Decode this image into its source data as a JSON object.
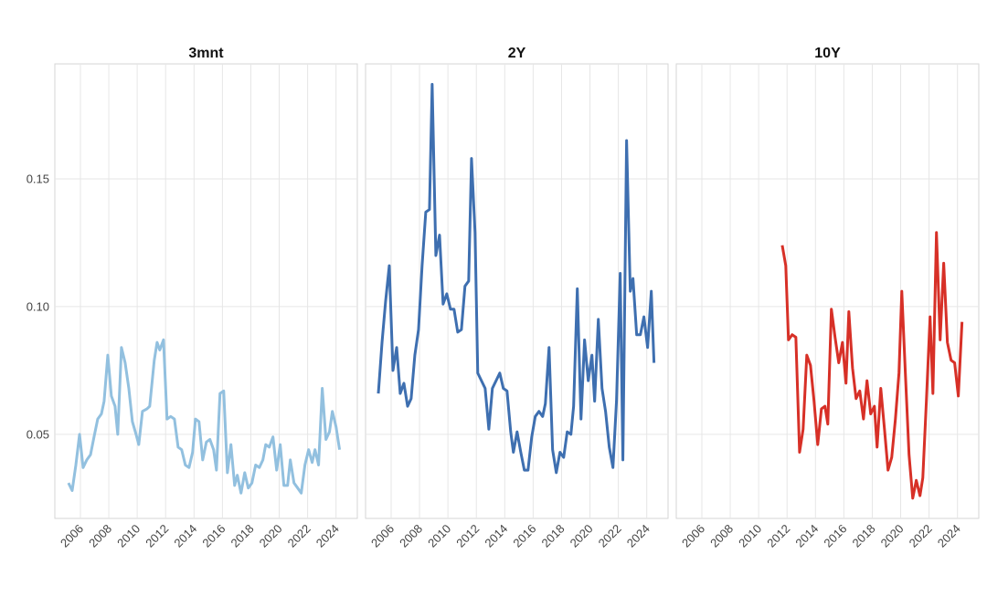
{
  "chart_data": [
    {
      "type": "line",
      "title": "3mnt",
      "color": "#92c0df",
      "grid": true,
      "xlim": [
        2004.2,
        2025.5
      ],
      "ylim": [
        0.0171,
        0.195
      ],
      "xticks": [
        2006,
        2008,
        2010,
        2012,
        2014,
        2016,
        2018,
        2020,
        2022,
        2024
      ],
      "yticks": [
        0.05,
        {
          "value": 0.1,
          "label": "0.10"
        },
        0.15
      ],
      "x": [
        2005.16,
        2005.42,
        2005.68,
        2005.94,
        2006.19,
        2006.45,
        2006.71,
        2006.96,
        2007.22,
        2007.48,
        2007.67,
        2007.93,
        2008.18,
        2008.44,
        2008.63,
        2008.89,
        2009.15,
        2009.41,
        2009.66,
        2009.92,
        2010.11,
        2010.37,
        2010.69,
        2010.88,
        2011.2,
        2011.4,
        2011.59,
        2011.85,
        2012.1,
        2012.36,
        2012.62,
        2012.88,
        2013.13,
        2013.39,
        2013.65,
        2013.9,
        2014.1,
        2014.35,
        2014.61,
        2014.87,
        2015.12,
        2015.38,
        2015.58,
        2015.83,
        2016.09,
        2016.35,
        2016.6,
        2016.86,
        2017.05,
        2017.31,
        2017.57,
        2017.82,
        2018.08,
        2018.34,
        2018.6,
        2018.85,
        2019.05,
        2019.3,
        2019.56,
        2019.82,
        2020.07,
        2020.33,
        2020.59,
        2020.78,
        2021.04,
        2021.3,
        2021.55,
        2021.81,
        2022.07,
        2022.32,
        2022.52,
        2022.77,
        2023.03,
        2023.29,
        2023.54,
        2023.74,
        2024.0,
        2024.25
      ],
      "values": [
        0.031,
        0.028,
        0.038,
        0.05,
        0.037,
        0.04,
        0.042,
        0.049,
        0.056,
        0.058,
        0.063,
        0.081,
        0.065,
        0.061,
        0.05,
        0.084,
        0.078,
        0.068,
        0.055,
        0.05,
        0.046,
        0.059,
        0.06,
        0.061,
        0.079,
        0.086,
        0.083,
        0.087,
        0.056,
        0.057,
        0.056,
        0.045,
        0.044,
        0.038,
        0.037,
        0.043,
        0.056,
        0.055,
        0.04,
        0.047,
        0.048,
        0.044,
        0.036,
        0.066,
        0.067,
        0.035,
        0.046,
        0.03,
        0.034,
        0.027,
        0.035,
        0.029,
        0.031,
        0.038,
        0.037,
        0.04,
        0.046,
        0.045,
        0.049,
        0.036,
        0.046,
        0.03,
        0.03,
        0.04,
        0.031,
        0.029,
        0.027,
        0.038,
        0.044,
        0.039,
        0.044,
        0.038,
        0.068,
        0.048,
        0.051,
        0.059,
        0.053,
        0.044
      ]
    },
    {
      "type": "line",
      "title": "2Y",
      "color": "#3e6fb0",
      "grid": true,
      "xlim": [
        2004.2,
        2025.5
      ],
      "ylim": [
        0.0171,
        0.195
      ],
      "xticks": [
        2006,
        2008,
        2010,
        2012,
        2014,
        2016,
        2018,
        2020,
        2022,
        2024
      ],
      "yticks": [
        0.05,
        {
          "value": 0.1,
          "label": "0.10"
        },
        0.15
      ],
      "x": [
        2005.1,
        2005.36,
        2005.61,
        2005.87,
        2006.13,
        2006.39,
        2006.64,
        2006.9,
        2007.16,
        2007.41,
        2007.67,
        2007.93,
        2008.18,
        2008.44,
        2008.7,
        2008.89,
        2009.15,
        2009.41,
        2009.66,
        2009.92,
        2010.18,
        2010.43,
        2010.69,
        2010.95,
        2011.2,
        2011.46,
        2011.66,
        2011.91,
        2012.1,
        2012.36,
        2012.62,
        2012.88,
        2013.13,
        2013.39,
        2013.65,
        2013.9,
        2014.16,
        2014.42,
        2014.61,
        2014.87,
        2015.13,
        2015.38,
        2015.64,
        2015.9,
        2016.15,
        2016.41,
        2016.67,
        2016.86,
        2017.12,
        2017.37,
        2017.63,
        2017.89,
        2018.15,
        2018.4,
        2018.66,
        2018.85,
        2019.11,
        2019.37,
        2019.62,
        2019.88,
        2020.14,
        2020.33,
        2020.59,
        2020.85,
        2021.1,
        2021.36,
        2021.62,
        2021.87,
        2022.13,
        2022.32,
        2022.58,
        2022.84,
        2023.03,
        2023.29,
        2023.55,
        2023.8,
        2024.06,
        2024.32,
        2024.51
      ],
      "values": [
        0.066,
        0.086,
        0.102,
        0.116,
        0.075,
        0.084,
        0.066,
        0.07,
        0.061,
        0.064,
        0.081,
        0.091,
        0.116,
        0.137,
        0.138,
        0.187,
        0.12,
        0.128,
        0.101,
        0.105,
        0.099,
        0.099,
        0.09,
        0.091,
        0.108,
        0.11,
        0.158,
        0.129,
        0.074,
        0.071,
        0.068,
        0.052,
        0.068,
        0.071,
        0.074,
        0.068,
        0.067,
        0.051,
        0.043,
        0.051,
        0.043,
        0.036,
        0.036,
        0.049,
        0.057,
        0.059,
        0.057,
        0.062,
        0.084,
        0.044,
        0.035,
        0.043,
        0.041,
        0.051,
        0.05,
        0.061,
        0.107,
        0.056,
        0.087,
        0.071,
        0.081,
        0.063,
        0.095,
        0.068,
        0.059,
        0.045,
        0.037,
        0.063,
        0.113,
        0.04,
        0.165,
        0.106,
        0.111,
        0.089,
        0.089,
        0.096,
        0.084,
        0.106,
        0.078
      ]
    },
    {
      "type": "line",
      "title": "10Y",
      "color": "#d73027",
      "grid": true,
      "xlim": [
        2004.2,
        2025.5
      ],
      "ylim": [
        0.0171,
        0.195
      ],
      "xticks": [
        2006,
        2008,
        2010,
        2012,
        2014,
        2016,
        2018,
        2020,
        2022,
        2024
      ],
      "yticks": [
        0.05,
        {
          "value": 0.1,
          "label": "0.10"
        },
        0.15
      ],
      "x": [
        2011.66,
        2011.91,
        2012.1,
        2012.36,
        2012.62,
        2012.88,
        2013.13,
        2013.39,
        2013.65,
        2013.9,
        2014.16,
        2014.42,
        2014.67,
        2014.87,
        2015.12,
        2015.38,
        2015.64,
        2015.9,
        2016.15,
        2016.35,
        2016.61,
        2016.86,
        2017.12,
        2017.38,
        2017.63,
        2017.89,
        2018.15,
        2018.34,
        2018.6,
        2018.86,
        2019.11,
        2019.37,
        2019.63,
        2019.88,
        2020.08,
        2020.33,
        2020.59,
        2020.85,
        2021.1,
        2021.36,
        2021.56,
        2021.81,
        2022.07,
        2022.27,
        2022.52,
        2022.78,
        2023.03,
        2023.29,
        2023.55,
        2023.8,
        2024.06,
        2024.32
      ],
      "values": [
        0.124,
        0.116,
        0.087,
        0.089,
        0.088,
        0.043,
        0.052,
        0.081,
        0.077,
        0.063,
        0.046,
        0.06,
        0.061,
        0.054,
        0.099,
        0.088,
        0.078,
        0.086,
        0.07,
        0.098,
        0.076,
        0.064,
        0.067,
        0.056,
        0.071,
        0.058,
        0.061,
        0.045,
        0.068,
        0.052,
        0.036,
        0.041,
        0.056,
        0.074,
        0.106,
        0.074,
        0.042,
        0.025,
        0.032,
        0.026,
        0.033,
        0.063,
        0.096,
        0.066,
        0.129,
        0.087,
        0.117,
        0.086,
        0.079,
        0.078,
        0.065,
        0.094
      ]
    }
  ]
}
